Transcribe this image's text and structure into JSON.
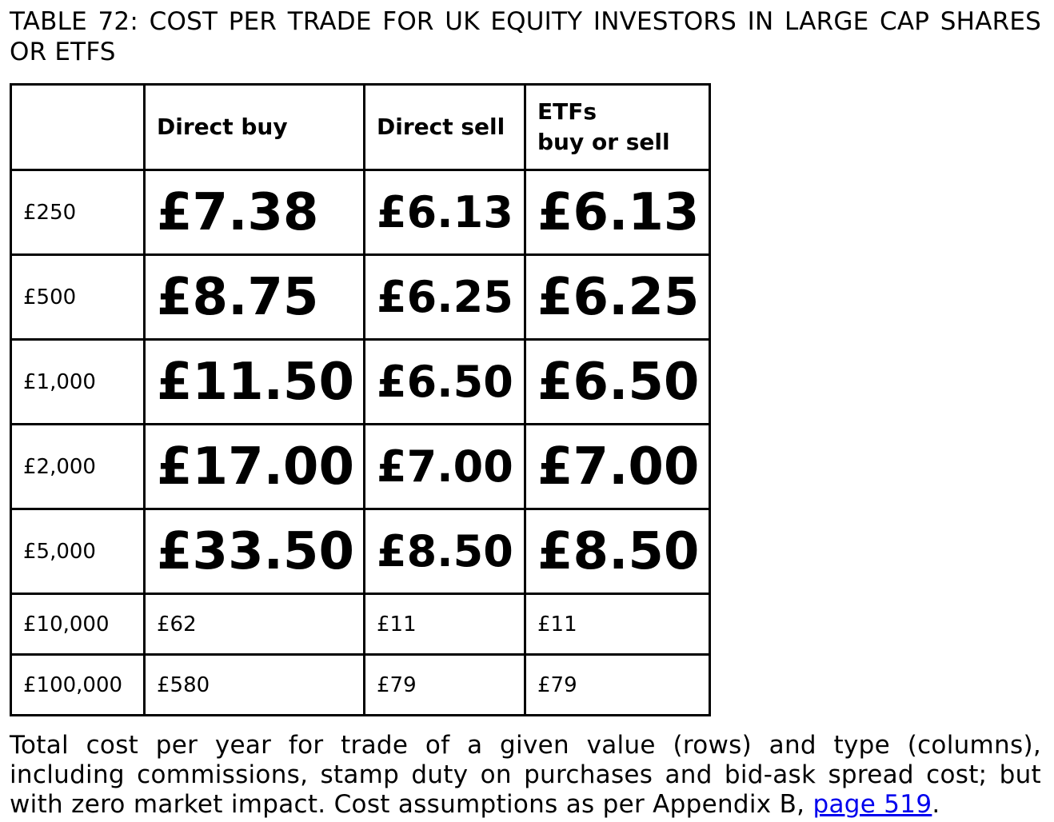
{
  "title": "TABLE 72: COST PER TRADE FOR UK EQUITY INVESTORS IN LARGE CAP SHARES OR ETFS",
  "table": {
    "headers": {
      "corner": "",
      "direct_buy": "Direct buy",
      "direct_sell": "Direct sell",
      "etfs_line1": "ETFs",
      "etfs_line2": "buy or sell"
    },
    "rows": [
      {
        "value": "£250",
        "direct_buy": "£7.38",
        "direct_sell": "£6.13",
        "etfs": "£6.13"
      },
      {
        "value": "£500",
        "direct_buy": "£8.75",
        "direct_sell": "£6.25",
        "etfs": "£6.25"
      },
      {
        "value": "£1,000",
        "direct_buy": "£11.50",
        "direct_sell": "£6.50",
        "etfs": "£6.50"
      },
      {
        "value": "£2,000",
        "direct_buy": "£17.00",
        "direct_sell": "£7.00",
        "etfs": "£7.00"
      },
      {
        "value": "£5,000",
        "direct_buy": "£33.50",
        "direct_sell": "£8.50",
        "etfs": "£8.50"
      },
      {
        "value": "£10,000",
        "direct_buy": "£62",
        "direct_sell": "£11",
        "etfs": "£11"
      },
      {
        "value": "£100,000",
        "direct_buy": "£580",
        "direct_sell": "£79",
        "etfs": "£79"
      }
    ]
  },
  "caption": {
    "text": "Total cost per year for trade of a given value (rows) and type (columns), including commissions, stamp duty on purchases and bid-ask spread cost; but with zero market impact. Cost assumptions as per Appendix B, ",
    "link_text": "page 519",
    "end": "."
  },
  "colors": {
    "text": "#000000",
    "link": "#0000ee",
    "border": "#000000",
    "background": "#ffffff"
  }
}
